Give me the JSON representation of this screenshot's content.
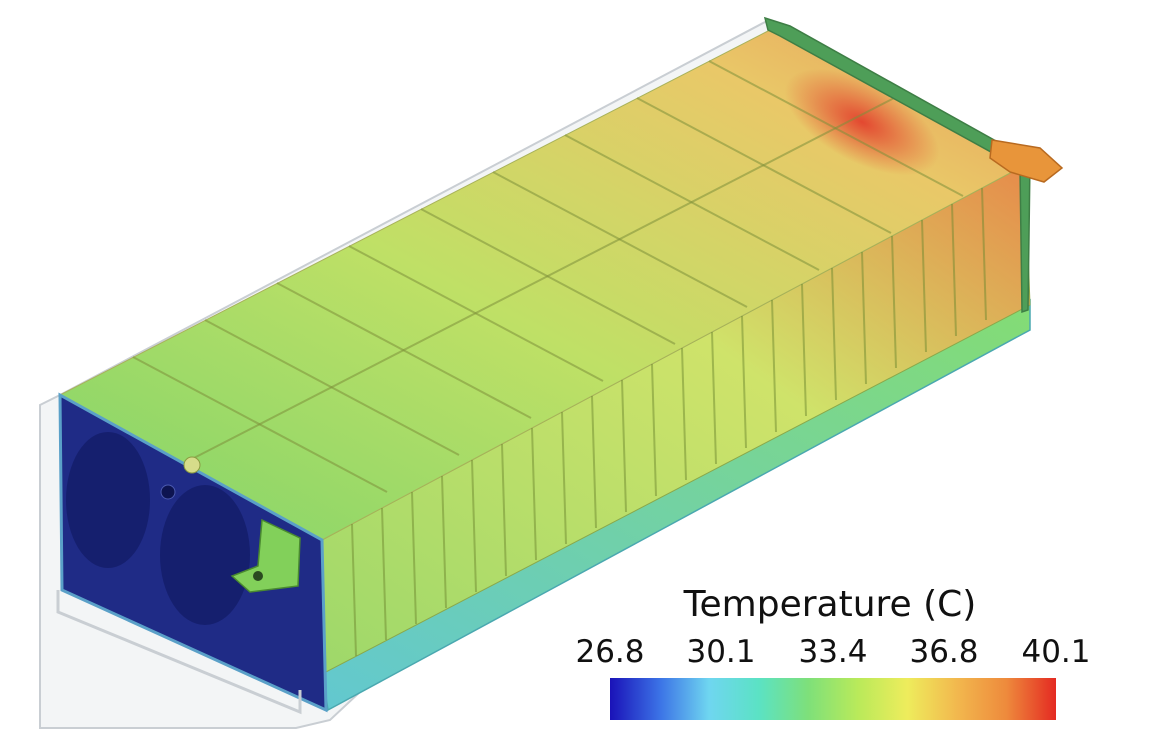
{
  "legend": {
    "title": "Temperature (C)",
    "ticks": [
      "26.8",
      "30.1",
      "33.4",
      "36.8",
      "40.1"
    ],
    "colors": [
      "#1a12b8",
      "#3b72e6",
      "#6fd6f0",
      "#5be2c4",
      "#7ee07a",
      "#b9ea5a",
      "#eeec5c",
      "#f2b84e",
      "#ee8a3c",
      "#e42a22"
    ]
  },
  "colors": {
    "cold_end_plate": "#202c7a",
    "housing_base": "#5ec7c4",
    "cell_top_cool": "#8ed86a",
    "cell_top_mid": "#c8e26a",
    "cell_top_warm": "#e6bf62",
    "cell_top_hot": "#de5a40",
    "hot_end_plate": "#4aa35a",
    "busbar": "#e8953a"
  }
}
